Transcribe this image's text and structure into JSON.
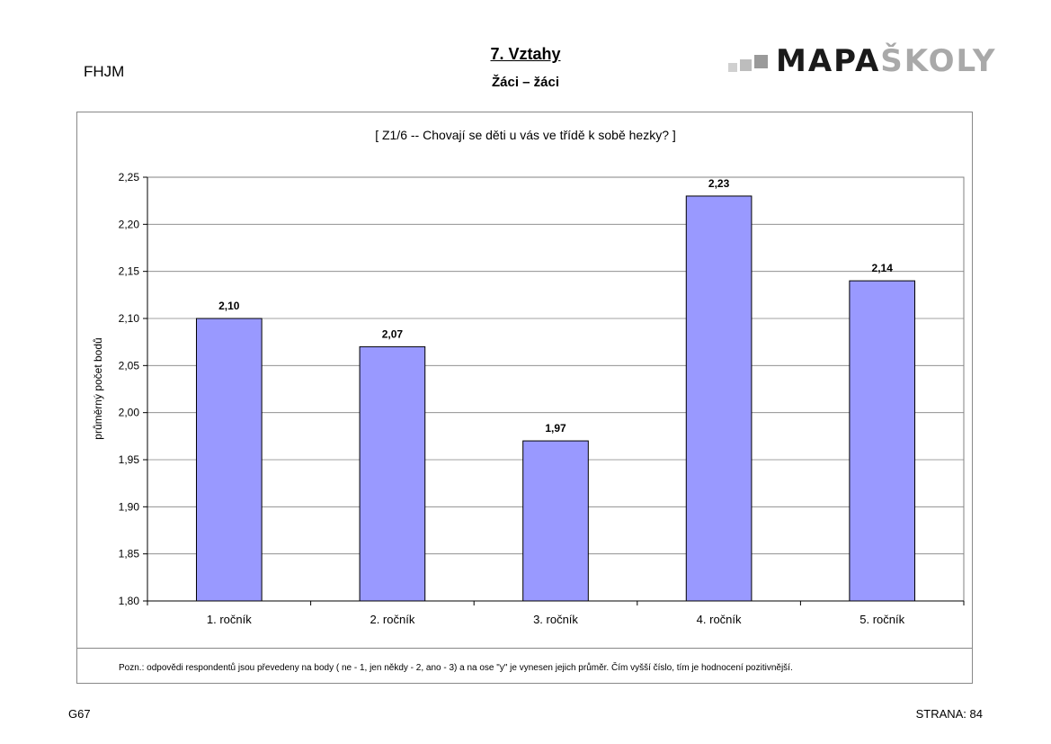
{
  "header": {
    "school_code": "FHJM",
    "section_title": "7. Vztahy",
    "section_subtitle": "Žáci – žáci",
    "logo": {
      "part1": "MAPA",
      "part2": "ŠKOLY",
      "color_dark": "#1a1a1a",
      "color_light": "#a9a9a9"
    }
  },
  "chart_data": {
    "type": "bar",
    "title": "[ Z1/6 --  Chovají se děti u vás ve třídě k sobě hezky? ]",
    "xlabel": "",
    "ylabel": "průměrný počet bodů",
    "categories": [
      "1. ročník",
      "2. ročník",
      "3. ročník",
      "4. ročník",
      "5. ročník"
    ],
    "values": [
      2.1,
      2.07,
      1.97,
      2.23,
      2.14
    ],
    "data_labels": [
      "2,10",
      "2,07",
      "1,97",
      "2,23",
      "2,14"
    ],
    "ylim": [
      1.8,
      2.25
    ],
    "yticks": [
      1.8,
      1.85,
      1.9,
      1.95,
      2.0,
      2.05,
      2.1,
      2.15,
      2.2,
      2.25
    ],
    "ytick_labels": [
      "1,80",
      "1,85",
      "1,90",
      "1,95",
      "2,00",
      "2,05",
      "2,10",
      "2,15",
      "2,20",
      "2,25"
    ],
    "grid": true,
    "bar_color": "#9999ff",
    "legend": "none"
  },
  "chart_note": "Pozn.: odpovědi respondentů jsou převedeny na body ( ne - 1, jen někdy - 2, ano - 3) a na ose \"y\" je vynesen jejich průměr. Čím vyšší číslo, tím je hodnocení pozitivnější.",
  "footer": {
    "left": "G67",
    "right": "STRANA: 84"
  }
}
